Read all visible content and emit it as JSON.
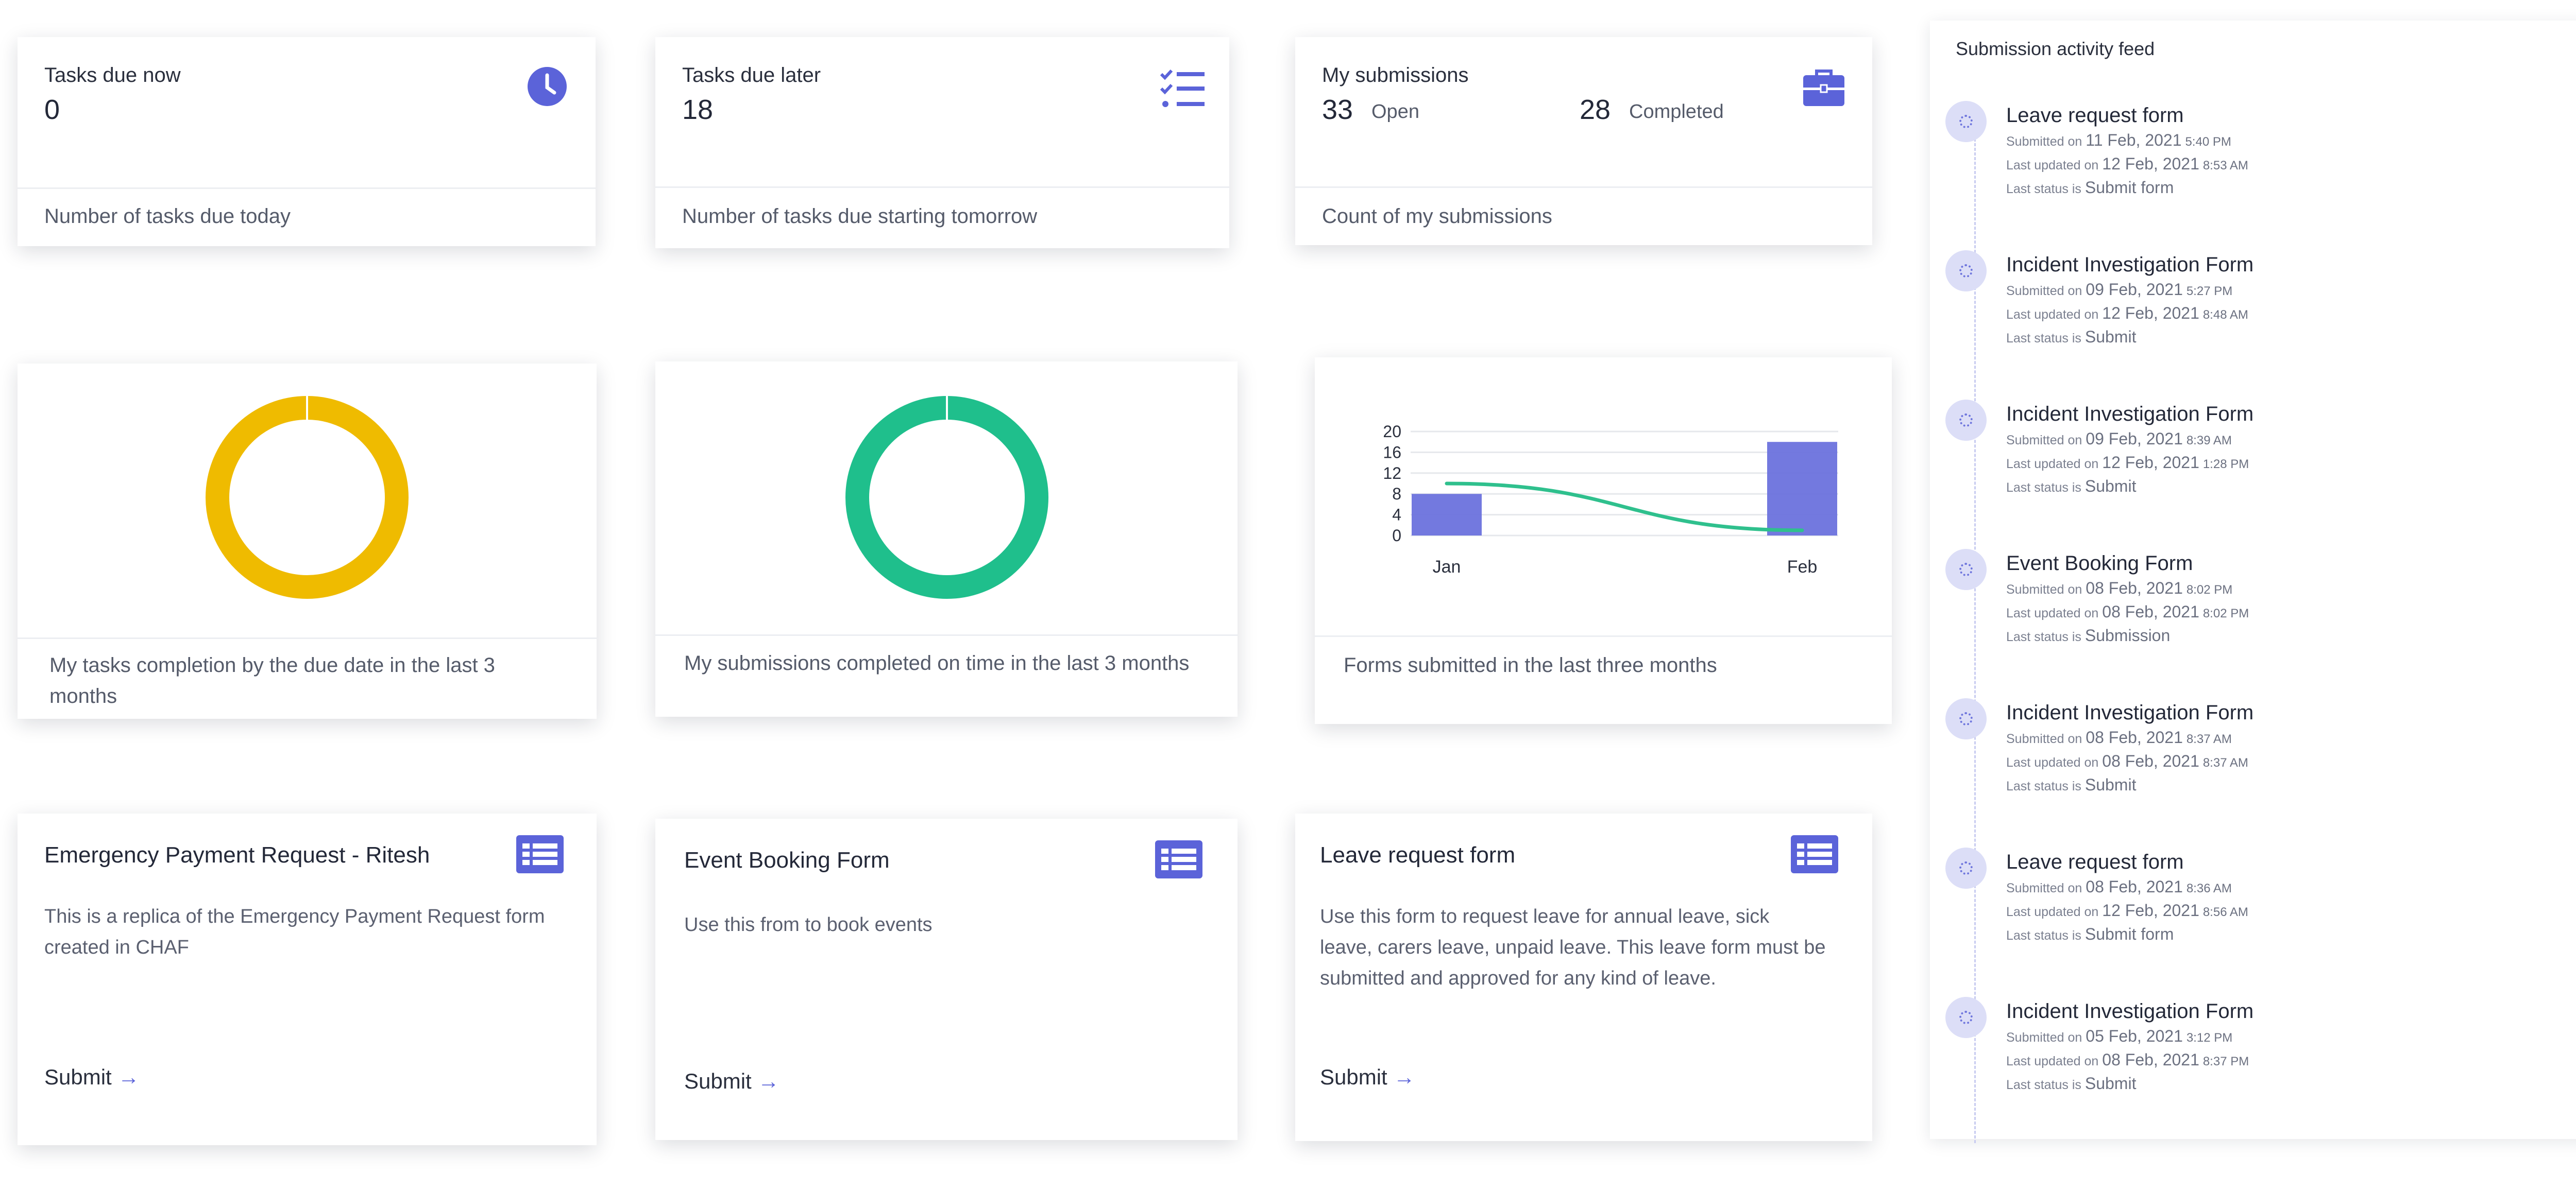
{
  "stats": {
    "due_now": {
      "title": "Tasks due now",
      "value": "0",
      "footer": "Number of tasks due today",
      "icon": "clock-icon"
    },
    "due_later": {
      "title": "Tasks due later",
      "value": "18",
      "footer": "Number of tasks due starting tomorrow",
      "icon": "checklist-icon"
    },
    "submissions": {
      "title": "My submissions",
      "open_value": "33",
      "open_label": "Open",
      "completed_value": "28",
      "completed_label": "Completed",
      "footer": "Count of my submissions",
      "icon": "briefcase-icon"
    }
  },
  "charts": {
    "tasks_completion": {
      "caption": "My tasks completion by the due date in the last 3 months",
      "color": "#efbb00",
      "percent": 100
    },
    "submissions_on_time": {
      "caption": "My submissions completed on time in the last 3 months",
      "color": "#1fbf8c",
      "percent": 100
    },
    "forms_submitted": {
      "caption": "Forms submitted in the last three months"
    }
  },
  "chart_data": {
    "type": "bar",
    "categories": [
      "Jan",
      "Feb"
    ],
    "series": [
      {
        "type": "bar",
        "values": [
          8,
          18
        ],
        "color": "#6b72dd"
      },
      {
        "type": "line",
        "values": [
          10,
          1
        ],
        "color": "#2fc08d"
      }
    ],
    "yticks": [
      "0",
      "4",
      "8",
      "12",
      "16",
      "20"
    ],
    "ylim": [
      0,
      20
    ],
    "grid": true
  },
  "forms": [
    {
      "title": "Emergency Payment Request - Ritesh",
      "desc1": "This is a replica of the Emergency Payment Request form",
      "desc2": "created in CHAF",
      "desc3": "",
      "submit": "Submit",
      "icon": "form-list-icon"
    },
    {
      "title": "Event Booking Form",
      "desc1": "Use this from to book events",
      "desc2": "",
      "desc3": "",
      "submit": "Submit",
      "icon": "form-list-icon"
    },
    {
      "title": "Leave request form",
      "desc1": "Use this form to request leave for annual leave, sick",
      "desc2": "leave, carers leave, unpaid leave. This leave form must be",
      "desc3": "submitted and approved for any kind of leave.",
      "submit": "Submit",
      "icon": "form-list-icon"
    }
  ],
  "feed": {
    "title": "Submission activity feed",
    "submitted_prefix": "Submitted on",
    "updated_prefix": "Last updated on",
    "status_prefix": "Last status is",
    "items": [
      {
        "title": "Leave request form",
        "sub_date": "11 Feb, 2021",
        "sub_time": "5:40 PM",
        "upd_date": "12 Feb, 2021",
        "upd_time": "8:53 AM",
        "status": "Submit form"
      },
      {
        "title": "Incident Investigation Form",
        "sub_date": "09 Feb, 2021",
        "sub_time": "5:27 PM",
        "upd_date": "12 Feb, 2021",
        "upd_time": "8:48 AM",
        "status": "Submit"
      },
      {
        "title": "Incident Investigation Form",
        "sub_date": "09 Feb, 2021",
        "sub_time": "8:39 AM",
        "upd_date": "12 Feb, 2021",
        "upd_time": "1:28 PM",
        "status": "Submit"
      },
      {
        "title": "Event Booking Form",
        "sub_date": "08 Feb, 2021",
        "sub_time": "8:02 PM",
        "upd_date": "08 Feb, 2021",
        "upd_time": "8:02 PM",
        "status": "Submission"
      },
      {
        "title": "Incident Investigation Form",
        "sub_date": "08 Feb, 2021",
        "sub_time": "8:37 AM",
        "upd_date": "08 Feb, 2021",
        "upd_time": "8:37 AM",
        "status": "Submit"
      },
      {
        "title": "Leave request form",
        "sub_date": "08 Feb, 2021",
        "sub_time": "8:36 AM",
        "upd_date": "12 Feb, 2021",
        "upd_time": "8:56 AM",
        "status": "Submit form"
      },
      {
        "title": "Incident Investigation Form",
        "sub_date": "05 Feb, 2021",
        "sub_time": "3:12 PM",
        "upd_date": "08 Feb, 2021",
        "upd_time": "8:37 PM",
        "status": "Submit"
      }
    ]
  },
  "colors": {
    "accent": "#5b63d9",
    "divider": "#eceef2"
  }
}
